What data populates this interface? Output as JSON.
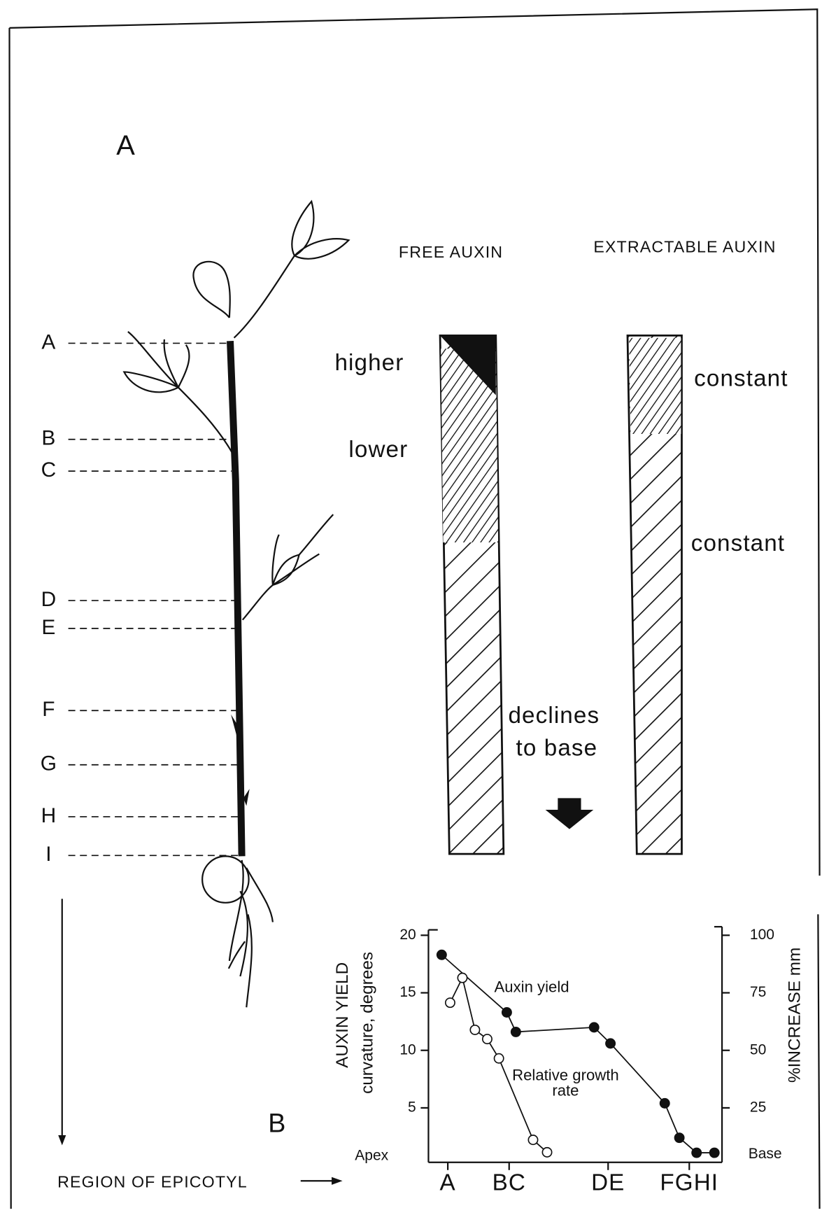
{
  "panel_a": {
    "label": "A",
    "regions": [
      "A",
      "B",
      "C",
      "D",
      "E",
      "F",
      "G",
      "H",
      "I"
    ],
    "free_auxin": {
      "title": "FREE AUXIN",
      "notes": [
        "higher",
        "lower",
        "declines",
        "to base"
      ]
    },
    "extractable_auxin": {
      "title": "EXTRACTABLE AUXIN",
      "notes": [
        "constant",
        "constant"
      ]
    },
    "axis_label": "REGION OF EPICOTYL"
  },
  "chart_data": {
    "type": "line",
    "label": "B",
    "y_label": [
      "AUXIN YIELD",
      "curvature, degrees"
    ],
    "y2_label": "%INCREASE mm",
    "x_start_label": "Apex",
    "x_end_label": "Base",
    "xlim": [
      0,
      100
    ],
    "xticks": [
      {
        "value": 5.3,
        "label": "A"
      },
      {
        "value": 26.3,
        "label": "BC"
      },
      {
        "value": 60.2,
        "label": "DE"
      },
      {
        "value": 88,
        "label": "FGHI"
      }
    ],
    "ylim": [
      0,
      20
    ],
    "yticks": [
      5,
      10,
      15,
      20
    ],
    "y2lim": [
      0,
      100
    ],
    "y2ticks": [
      25,
      50,
      75,
      100
    ],
    "series": [
      {
        "name": "Auxin yield",
        "color": "#111111",
        "marker": "filled",
        "x": [
          3.2,
          25.5,
          28.6,
          55.4,
          61,
          79.6,
          84.6,
          90.5,
          96.6
        ],
        "values": [
          18.3,
          13.3,
          11.6,
          12.0,
          10.6,
          5.4,
          2.4,
          1.1,
          1.1
        ]
      },
      {
        "name": "Relative growth rate",
        "color": "#111111",
        "marker": "open",
        "axis": "y2",
        "x": [
          6.1,
          10.3,
          14.6,
          18.8,
          22.8,
          34.5,
          39.3
        ],
        "values": [
          70.7,
          81.5,
          58.9,
          54.9,
          46.5,
          11.1,
          5.7
        ]
      }
    ]
  }
}
